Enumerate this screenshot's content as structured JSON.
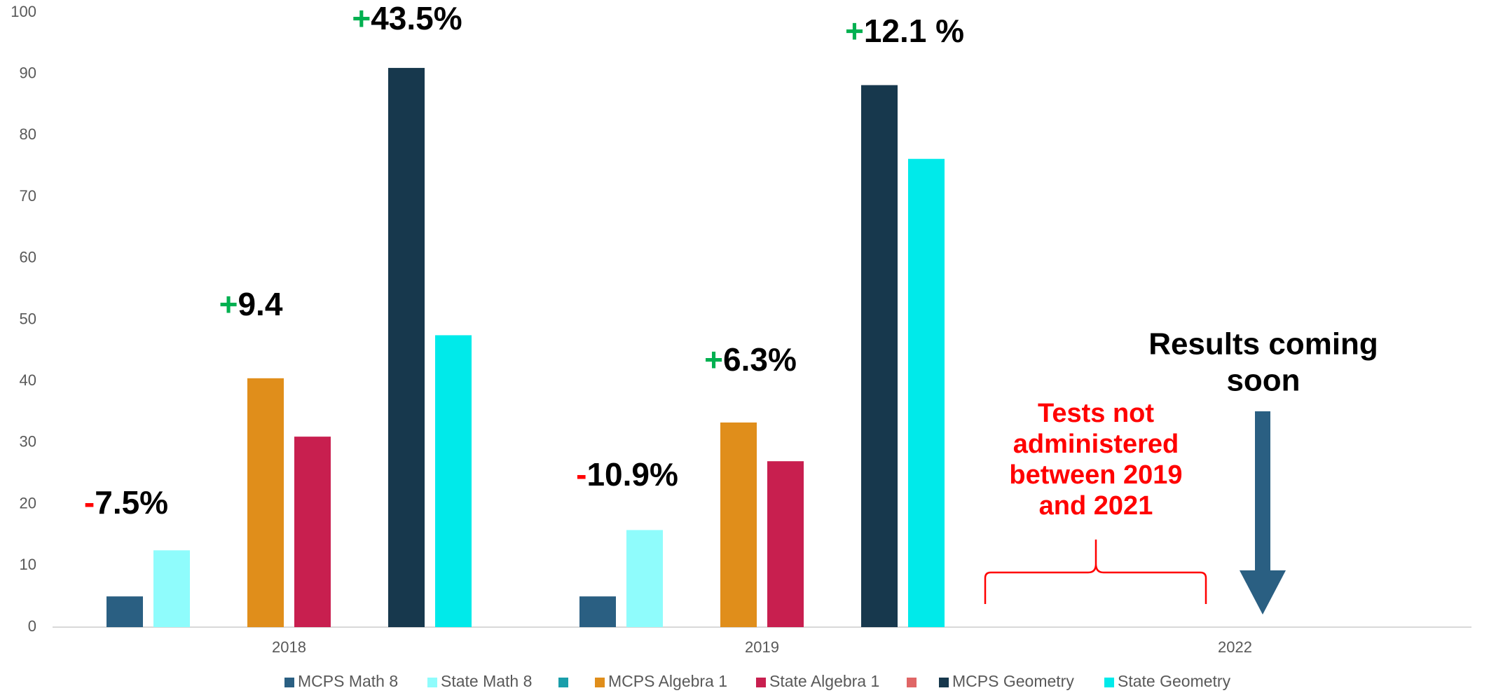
{
  "chart_data": {
    "type": "bar",
    "categories": [
      "2018",
      "2019",
      "2022"
    ],
    "series": [
      {
        "name": "MCPS  Math 8",
        "color": "#2a5f82",
        "values": [
          5,
          5,
          null
        ]
      },
      {
        "name": "State Math 8",
        "color": "#8ffcfc",
        "values": [
          12.5,
          15.8,
          null
        ]
      },
      {
        "name": null,
        "color": "#1a9eaa",
        "values": [
          null,
          null,
          null
        ]
      },
      {
        "name": "MCPS Algebra 1",
        "color": "#e08e1b",
        "values": [
          40.5,
          33.3,
          null
        ]
      },
      {
        "name": "State Algebra 1",
        "color": "#c81f4f",
        "values": [
          31,
          27,
          null
        ]
      },
      {
        "name": null,
        "color": "#e06666",
        "values": [
          null,
          null,
          null
        ]
      },
      {
        "name": "MCPS Geometry",
        "color": "#17384d",
        "values": [
          91,
          88.2,
          null
        ]
      },
      {
        "name": "State Geometry",
        "color": "#00eaea",
        "values": [
          47.5,
          76.2,
          null
        ]
      }
    ],
    "ylim": [
      0,
      100
    ],
    "yticks": [
      0,
      10,
      20,
      30,
      40,
      50,
      60,
      70,
      80,
      90,
      100
    ],
    "grid": false,
    "legend": "bottom",
    "annotations": [
      {
        "sign": "-",
        "text": "7.5%",
        "color": "#ff0000"
      },
      {
        "sign": "+",
        "text": "9.4",
        "color": "#00b050"
      },
      {
        "sign": "+",
        "text": "43.5%",
        "color": "#00b050"
      },
      {
        "sign": "-",
        "text": "10.9%",
        "color": "#ff0000"
      },
      {
        "sign": "+",
        "text": "6.3%",
        "color": "#00b050"
      },
      {
        "sign": "+",
        "text": "12.1 %",
        "color": "#00b050"
      }
    ],
    "note_gap": [
      "Tests not",
      "administered",
      "between 2019",
      "and 2021"
    ],
    "note_soon": [
      "Results coming",
      "soon"
    ]
  }
}
